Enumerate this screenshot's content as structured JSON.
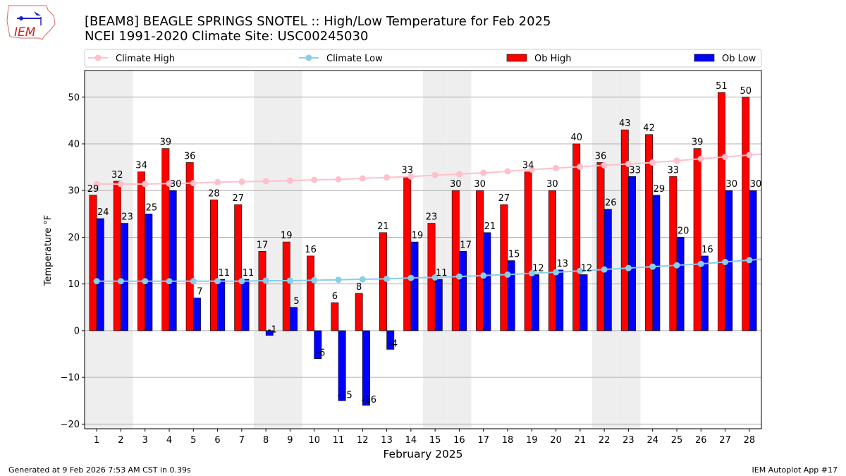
{
  "logo_text": "IEM",
  "footer": {
    "left": "Generated at 9 Feb 2026 7:53 AM CST in 0.39s",
    "right": "IEM Autoplot App #17"
  },
  "colors": {
    "ob_high": "#ff0000",
    "ob_low": "#0000ff",
    "climate_high": "#ffc0cb",
    "climate_low": "#87ceeb",
    "weekend": "#eeeeee",
    "grid": "#b0b0b0"
  },
  "chart_data": {
    "type": "bar",
    "title": "[BEAM8] BEAGLE SPRINGS SNOTEL :: High/Low Temperature for Feb 2025",
    "subtitle": "NCEI 1991-2020 Climate Site: USC00245030",
    "xlabel": "February 2025",
    "ylabel": "Temperature °F",
    "xlim": [
      0.5,
      28.5
    ],
    "ylim": [
      -21,
      55.7
    ],
    "yticks": [
      -20,
      -10,
      0,
      10,
      20,
      30,
      40,
      50
    ],
    "grid": true,
    "legend_placement": "top",
    "weekend_days": [
      1,
      2,
      8,
      9,
      15,
      16,
      22,
      23
    ],
    "x": [
      1,
      2,
      3,
      4,
      5,
      6,
      7,
      8,
      9,
      10,
      11,
      12,
      13,
      14,
      15,
      16,
      17,
      18,
      19,
      20,
      21,
      22,
      23,
      24,
      25,
      26,
      27,
      28
    ],
    "series": [
      {
        "name": "Ob High",
        "type": "bar",
        "values": [
          29,
          32,
          34,
          39,
          36,
          28,
          27,
          17,
          19,
          16,
          6,
          8,
          21,
          33,
          23,
          30,
          30,
          27,
          34,
          30,
          40,
          36,
          43,
          42,
          33,
          39,
          51,
          50
        ]
      },
      {
        "name": "Ob Low",
        "type": "bar",
        "values": [
          24,
          23,
          25,
          30,
          7,
          11,
          11,
          -1,
          5,
          -6,
          -15,
          -16,
          -4,
          19,
          11,
          17,
          21,
          15,
          12,
          13,
          12,
          26,
          33,
          29,
          20,
          16,
          30,
          30
        ]
      },
      {
        "name": "Climate High",
        "type": "line",
        "values": [
          31.4,
          31.4,
          31.4,
          31.5,
          31.6,
          31.8,
          31.9,
          32.0,
          32.1,
          32.3,
          32.4,
          32.6,
          32.8,
          33.0,
          33.3,
          33.5,
          33.8,
          34.1,
          34.5,
          34.8,
          35.1,
          35.4,
          35.7,
          36.0,
          36.4,
          36.8,
          37.2,
          37.6
        ]
      },
      {
        "name": "Climate Low",
        "type": "line",
        "values": [
          10.6,
          10.6,
          10.6,
          10.6,
          10.6,
          10.6,
          10.6,
          10.7,
          10.7,
          10.8,
          10.9,
          11.0,
          11.1,
          11.3,
          11.4,
          11.6,
          11.8,
          12.0,
          12.3,
          12.5,
          12.8,
          13.1,
          13.4,
          13.7,
          14.0,
          14.3,
          14.7,
          15.1
        ]
      }
    ]
  }
}
